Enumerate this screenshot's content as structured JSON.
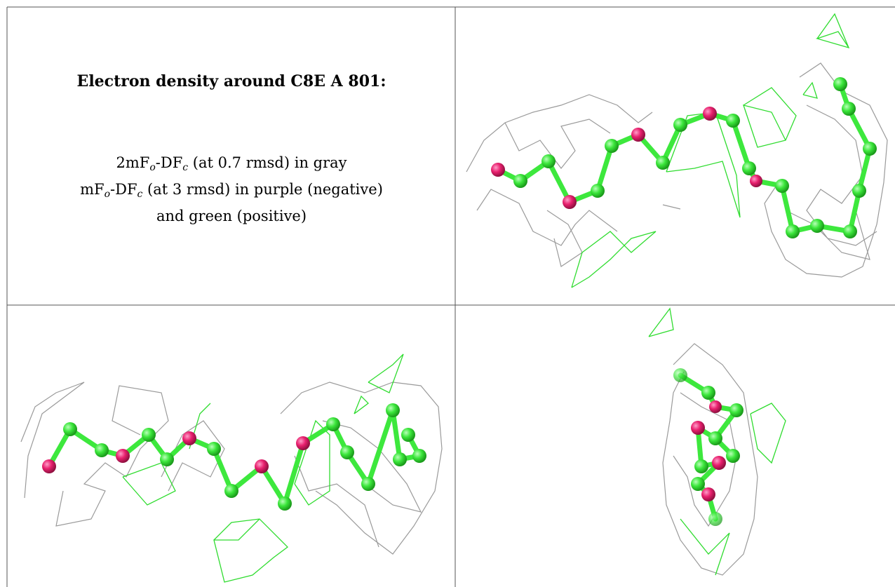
{
  "panel": {
    "title": "Electron density around C8E A 801:",
    "lines": [
      [
        "2mF",
        "o",
        "-DF",
        "c",
        " (at 0.7 rmsd) in gray"
      ],
      [
        "mF",
        "o",
        "-DF",
        "c",
        " (at 3 rmsd) in purple (negative)"
      ],
      [
        "and green (positive)"
      ]
    ]
  }
}
